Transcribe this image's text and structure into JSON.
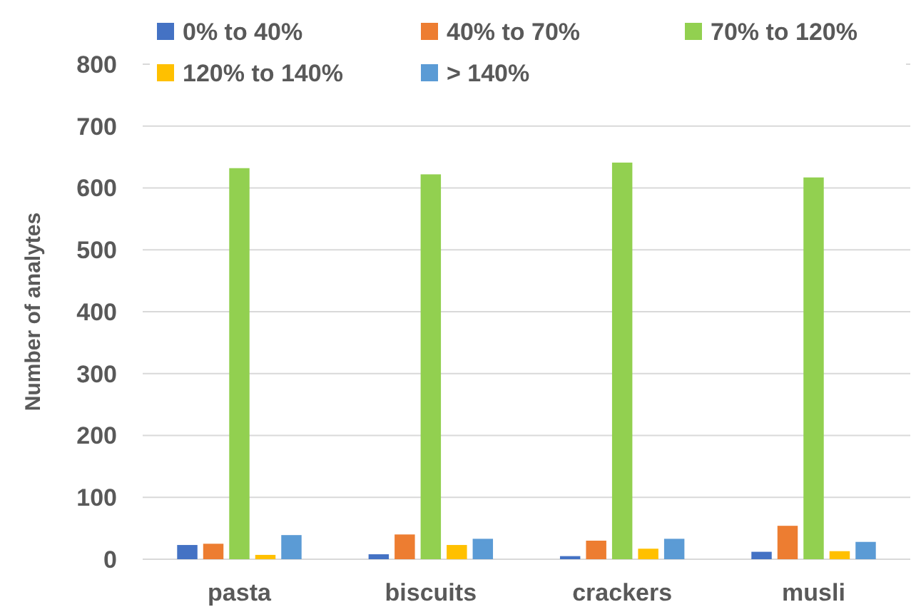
{
  "chart_data": {
    "type": "bar",
    "ylabel": "Number of analytes",
    "categories": [
      "pasta",
      "biscuits",
      "crackers",
      "musli"
    ],
    "series": [
      {
        "name": "0% to 40%",
        "color": "#4472c4",
        "values": [
          23,
          8,
          5,
          12
        ]
      },
      {
        "name": "40% to 70%",
        "color": "#ed7d31",
        "values": [
          25,
          40,
          30,
          54
        ]
      },
      {
        "name": "70% to 120%",
        "color": "#92d050",
        "values": [
          632,
          622,
          641,
          617
        ]
      },
      {
        "name": "120% to 140%",
        "color": "#ffc000",
        "values": [
          7,
          23,
          17,
          13
        ]
      },
      {
        "name": "> 140%",
        "color": "#5b9bd5",
        "values": [
          39,
          33,
          33,
          28
        ]
      }
    ],
    "ylim": [
      0,
      800
    ],
    "yticks": [
      0,
      100,
      200,
      300,
      400,
      500,
      600,
      700,
      800
    ],
    "grid": "y",
    "legend": "top"
  }
}
